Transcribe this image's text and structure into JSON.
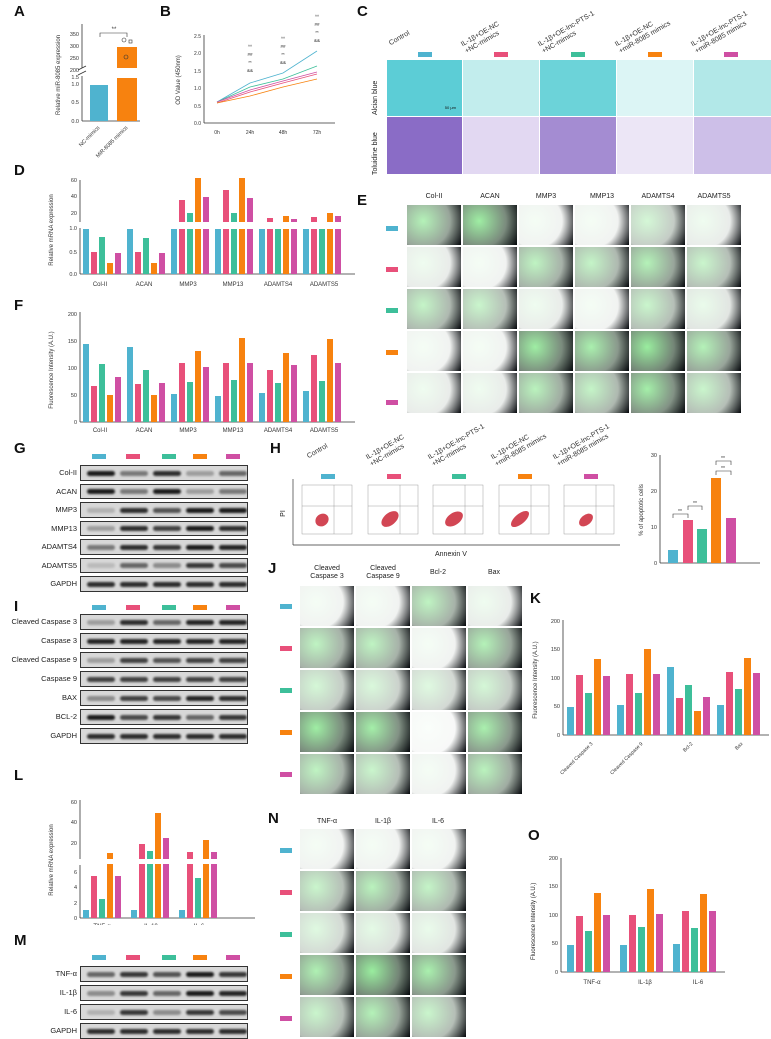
{
  "figure": {
    "panels": [
      "A",
      "B",
      "C",
      "D",
      "E",
      "F",
      "G",
      "H",
      "I",
      "J",
      "K",
      "L",
      "M",
      "N",
      "O"
    ]
  },
  "groups": [
    {
      "label": "Control",
      "color": "#4fb3cf"
    },
    {
      "label": "IL-1β+OE-NC\n+NC-mimics",
      "color": "#e8507a"
    },
    {
      "label": "IL-1β+OE-lnc-PTS-1\n+NC-mimics",
      "color": "#3dbf9a"
    },
    {
      "label": "IL-1β+OE-NC\n+miR-8085 mimics",
      "color": "#f7820f"
    },
    {
      "label": "IL-1β+OE-lnc-PTS-1\n+miR-8085 mimics",
      "color": "#cf4fa3"
    }
  ],
  "panelC": {
    "rows": [
      "Alcian blue",
      "Toluidine blue"
    ],
    "scale_bar": "50 μm"
  },
  "panelE": {
    "columns": [
      "Col-II",
      "ACAN",
      "MMP3",
      "MMP13",
      "ADAMTS4",
      "ADAMTS5"
    ]
  },
  "panelG": {
    "rows": [
      "Col-II",
      "ACAN",
      "MMP3",
      "MMP13",
      "ADAMTS4",
      "ADAMTS5",
      "GAPDH"
    ]
  },
  "panelH": {
    "xlabel": "Annexin V",
    "ylabel": "PI"
  },
  "panelI": {
    "rows": [
      "Cleaved Caspase 3",
      "Caspase 3",
      "Cleaved Caspase 9",
      "Caspase 9",
      "BAX",
      "BCL-2",
      "GAPDH"
    ]
  },
  "panelJ": {
    "columns": [
      "Cleaved\nCaspase 3",
      "Cleaved\nCaspase 9",
      "Bcl-2",
      "Bax"
    ]
  },
  "panelM": {
    "rows": [
      "TNF-α",
      "IL-1β",
      "IL-6",
      "GAPDH"
    ]
  },
  "panelN": {
    "columns": [
      "TNF-α",
      "IL-1β",
      "IL-6"
    ]
  },
  "chart_data": [
    {
      "panel": "A",
      "type": "bar",
      "categories": [
        "NC-mimics",
        "MiR-8085 mimics"
      ],
      "values": [
        1.0,
        260
      ],
      "colors": [
        "#4fb3cf",
        "#f7820f"
      ],
      "ylabel": "Relative miR-8085 expression",
      "yticks_lower": [
        0.0,
        0.5,
        1.0,
        1.5
      ],
      "yticks_upper": [
        200,
        250,
        300,
        350
      ],
      "axis_break": true,
      "annotations": [
        "**"
      ]
    },
    {
      "panel": "B",
      "type": "line",
      "x": [
        "0h",
        "24h",
        "48h",
        "72h"
      ],
      "ylabel": "OD Value (450nm)",
      "ylim": [
        0.0,
        2.5
      ],
      "yticks": [
        0.0,
        0.5,
        1.0,
        1.5,
        2.0,
        2.5
      ],
      "series": [
        {
          "name": "Control",
          "color": "#4fb3cf",
          "values": [
            0.62,
            1.15,
            1.43,
            2.03
          ]
        },
        {
          "name": "IL-1β+OE-lnc-PTS-1+NC-mimics",
          "color": "#3dbf9a",
          "values": [
            0.61,
            1.04,
            1.27,
            1.6
          ]
        },
        {
          "name": "IL-1β+OE-lnc-PTS-1+miR-8085 mimics",
          "color": "#cf4fa3",
          "values": [
            0.6,
            0.95,
            1.2,
            1.45
          ]
        },
        {
          "name": "IL-1β+OE-NC+NC-mimics",
          "color": "#e8507a",
          "values": [
            0.6,
            0.9,
            1.15,
            1.4
          ]
        },
        {
          "name": "IL-1β+OE-NC+miR-8085 mimics",
          "color": "#f7820f",
          "values": [
            0.59,
            0.78,
            1.04,
            1.26
          ]
        }
      ],
      "annotations": [
        "^^",
        "##",
        "**",
        "&&"
      ]
    },
    {
      "panel": "D",
      "type": "bar",
      "ylabel": "Relative mRNA expression",
      "categories": [
        "Col-II",
        "ACAN",
        "MMP3",
        "MMP13",
        "ADAMTS4",
        "ADAMTS5"
      ],
      "yticks_lower": [
        0.0,
        0.5,
        1.0
      ],
      "yticks_upper": [
        20,
        40,
        60
      ],
      "axis_break": true,
      "series": [
        {
          "name": "Control",
          "values": [
            1.0,
            1.0,
            1.0,
            1.0,
            1.0,
            1.0
          ]
        },
        {
          "name": "IL-1β+OE-NC+NC-mimics",
          "values": [
            0.47,
            0.48,
            23,
            36,
            4,
            4.5
          ]
        },
        {
          "name": "IL-1β+OE-lnc-PTS-1+NC-mimics",
          "values": [
            0.76,
            0.73,
            7,
            7,
            1.5,
            1.8
          ]
        },
        {
          "name": "IL-1β+OE-NC+miR-8085 mimics",
          "values": [
            0.24,
            0.24,
            55,
            52,
            5,
            11
          ]
        },
        {
          "name": "IL-1β+OE-lnc-PTS-1+miR-8085 mimics",
          "values": [
            0.45,
            0.46,
            26,
            29,
            2.5,
            6
          ]
        }
      ]
    },
    {
      "panel": "F",
      "type": "bar",
      "ylabel": "Fluorescence Intensity (A.U.)",
      "ylim": [
        0,
        200
      ],
      "yticks": [
        0,
        50,
        100,
        150,
        200
      ],
      "categories": [
        "Col-II",
        "ACAN",
        "MMP3",
        "MMP13",
        "ADAMTS4",
        "ADAMTS5"
      ],
      "series": [
        {
          "name": "Control",
          "values": [
            142,
            137,
            52,
            48,
            53,
            57
          ]
        },
        {
          "name": "IL-1β+OE-NC+NC-mimics",
          "values": [
            65,
            69,
            108,
            109,
            97,
            124
          ]
        },
        {
          "name": "IL-1β+OE-lnc-PTS-1+NC-mimics",
          "values": [
            105,
            95,
            74,
            78,
            71,
            75
          ]
        },
        {
          "name": "IL-1β+OE-NC+miR-8085 mimics",
          "values": [
            50,
            50,
            130,
            155,
            128,
            153
          ]
        },
        {
          "name": "IL-1β+OE-lnc-PTS-1+miR-8085 mimics",
          "values": [
            82,
            71,
            100,
            110,
            105,
            110
          ]
        }
      ]
    },
    {
      "panel": "H",
      "type": "bar",
      "ylabel": "% of apoptotic cells",
      "ylim": [
        0,
        30
      ],
      "yticks": [
        0,
        10,
        20,
        30
      ],
      "categories": [
        "Control",
        "IL-1β+OE-NC+NC-mimics",
        "IL-1β+OE-lnc-PTS-1+NC-mimics",
        "IL-1β+OE-NC+miR-8085 mimics",
        "IL-1β+OE-lnc-PTS-1+miR-8085 mimics"
      ],
      "values": [
        3.5,
        12,
        9.5,
        23.5,
        12.5
      ],
      "annotations": [
        "**",
        "**",
        "**",
        "**"
      ]
    },
    {
      "panel": "K",
      "type": "bar",
      "ylabel": "Fluorescence Intensity (A.U.)",
      "ylim": [
        0,
        200
      ],
      "yticks": [
        0,
        50,
        100,
        150,
        200
      ],
      "categories": [
        "Cleaved Caspase 3",
        "Cleaved Caspase 9",
        "Bcl-2",
        "Bax"
      ],
      "series": [
        {
          "name": "Control",
          "values": [
            48,
            52,
            118,
            53
          ]
        },
        {
          "name": "IL-1β+OE-NC+NC-mimics",
          "values": [
            105,
            107,
            64,
            110
          ]
        },
        {
          "name": "IL-1β+OE-lnc-PTS-1+NC-mimics",
          "values": [
            73,
            73,
            87,
            81
          ]
        },
        {
          "name": "IL-1β+OE-NC+miR-8085 mimics",
          "values": [
            133,
            150,
            42,
            135
          ]
        },
        {
          "name": "IL-1β+OE-lnc-PTS-1+miR-8085 mimics",
          "values": [
            103,
            107,
            67,
            108
          ]
        }
      ]
    },
    {
      "panel": "L",
      "type": "bar",
      "ylabel": "Relative mRNA expression",
      "categories": [
        "TNF-α",
        "IL-1β",
        "IL-6"
      ],
      "yticks_lower": [
        0,
        2,
        4,
        6
      ],
      "yticks_upper": [
        20,
        40,
        60
      ],
      "axis_break": true,
      "series": [
        {
          "name": "Control",
          "values": [
            1,
            1,
            1
          ]
        },
        {
          "name": "IL-1β+OE-NC+NC-mimics",
          "values": [
            5.4,
            18,
            10
          ]
        },
        {
          "name": "IL-1β+OE-lnc-PTS-1+NC-mimics",
          "values": [
            2.5,
            10,
            5.2
          ]
        },
        {
          "name": "IL-1β+OE-NC+miR-8085 mimics",
          "values": [
            10,
            50,
            22
          ]
        },
        {
          "name": "IL-1β+OE-lnc-PTS-1+miR-8085 mimics",
          "values": [
            5.4,
            25,
            10
          ]
        }
      ]
    },
    {
      "panel": "O",
      "type": "bar",
      "ylabel": "Fluorescence Intensity (A.U.)",
      "ylim": [
        0,
        200
      ],
      "yticks": [
        0,
        50,
        100,
        150,
        200
      ],
      "categories": [
        "TNF-α",
        "IL-1β",
        "IL-6"
      ],
      "series": [
        {
          "name": "Control",
          "values": [
            48,
            47,
            49
          ]
        },
        {
          "name": "IL-1β+OE-NC+NC-mimics",
          "values": [
            98,
            100,
            107
          ]
        },
        {
          "name": "IL-1β+OE-lnc-PTS-1+NC-mimics",
          "values": [
            72,
            79,
            77
          ]
        },
        {
          "name": "IL-1β+OE-NC+miR-8085 mimics",
          "values": [
            138,
            146,
            136
          ]
        },
        {
          "name": "IL-1β+OE-lnc-PTS-1+miR-8085 mimics",
          "values": [
            101,
            103,
            107
          ]
        }
      ]
    }
  ]
}
